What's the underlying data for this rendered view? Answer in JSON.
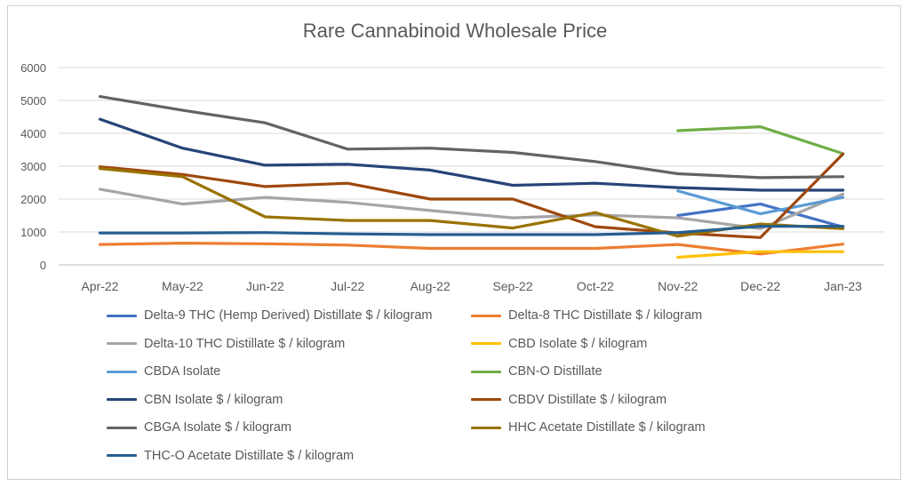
{
  "chart_data": {
    "type": "line",
    "title": "Rare Cannabinoid Wholesale Price",
    "xlabel": "",
    "ylabel": "",
    "categories": [
      "Apr-22",
      "May-22",
      "Jun-22",
      "Jul-22",
      "Aug-22",
      "Sep-22",
      "Oct-22",
      "Nov-22",
      "Dec-22",
      "Jan-23"
    ],
    "ylim": [
      0,
      6000
    ],
    "yticks": [
      0,
      1000,
      2000,
      3000,
      4000,
      5000,
      6000
    ],
    "grid": true,
    "legend_position": "bottom",
    "series": [
      {
        "name": "Delta-9 THC (Hemp Derived) Distillate $ / kilogram",
        "color": "#4472c4",
        "values": [
          null,
          null,
          null,
          null,
          null,
          null,
          null,
          1500,
          1850,
          1150
        ]
      },
      {
        "name": "Delta-8 THC  Distillate  $ / kilogram",
        "color": "#ed7d31",
        "values": [
          620,
          660,
          640,
          600,
          500,
          500,
          500,
          620,
          330,
          630
        ]
      },
      {
        "name": "Delta-10 THC Distillate $ / kilogram",
        "color": "#a5a5a5",
        "values": [
          2300,
          1850,
          2050,
          1900,
          1650,
          1430,
          1520,
          1430,
          1100,
          2150
        ]
      },
      {
        "name": "CBD  Isolate $ / kilogram",
        "color": "#ffc000",
        "values": [
          null,
          null,
          null,
          null,
          null,
          null,
          null,
          230,
          400,
          400
        ]
      },
      {
        "name": "CBDA  Isolate",
        "color": "#5b9bd5",
        "values": [
          null,
          null,
          null,
          null,
          null,
          null,
          null,
          2250,
          1550,
          2050
        ]
      },
      {
        "name": "CBN-O  Distillate",
        "color": "#70ad47",
        "values": [
          null,
          null,
          null,
          null,
          null,
          null,
          null,
          4080,
          4200,
          3380
        ]
      },
      {
        "name": "CBN  Isolate $ / kilogram",
        "color": "#264478",
        "values": [
          4430,
          3550,
          3030,
          3060,
          2880,
          2420,
          2480,
          2350,
          2270,
          2270
        ]
      },
      {
        "name": "CBDV  Distillate  $ / kilogram",
        "color": "#9e480e",
        "values": [
          2980,
          2750,
          2380,
          2480,
          2000,
          2000,
          1160,
          970,
          830,
          3370
        ]
      },
      {
        "name": "CBGA Isolate $ / kilogram",
        "color": "#636363",
        "values": [
          5120,
          4700,
          4320,
          3520,
          3550,
          3420,
          3140,
          2770,
          2650,
          2680
        ]
      },
      {
        "name": "HHC Acetate Distillate  $ / kilogram",
        "color": "#997300",
        "values": [
          2930,
          2680,
          1460,
          1350,
          1350,
          1120,
          1590,
          870,
          1240,
          1100
        ]
      },
      {
        "name": "THC-O Acetate Distillate  $ / kilogram",
        "color": "#255e91",
        "values": [
          970,
          970,
          980,
          940,
          920,
          920,
          920,
          980,
          1170,
          1170
        ]
      }
    ]
  }
}
